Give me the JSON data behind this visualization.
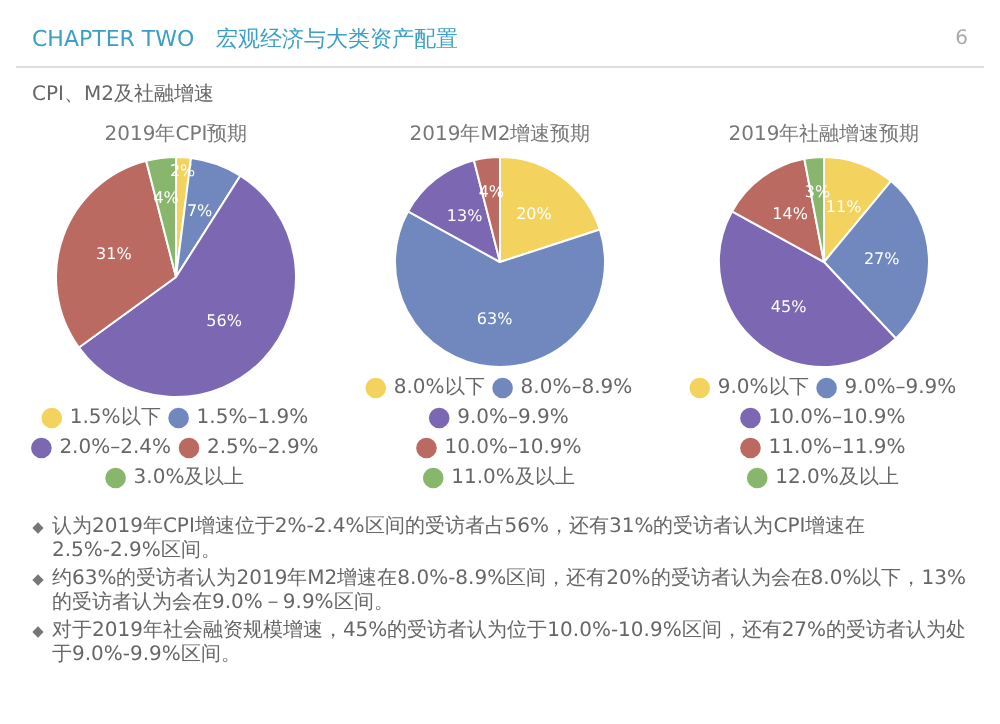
{
  "chart_data": [
    {
      "type": "other",
      "title": "CHAPTER TWO　宏观经济与大类资产配置",
      "subtitle": "CPI、M2及社融增速",
      "annotations": [
        "6"
      ]
    },
    {
      "type": "pie",
      "title": "2019年CPI预期",
      "categories": [
        "1.5%以下",
        "1.5%–1.9%",
        "2.0%–2.4%",
        "2.5%–2.9%",
        "3.0%及以上"
      ],
      "values": [
        2,
        7,
        56,
        31,
        4
      ],
      "value_labels": [
        "2%",
        "7%",
        "56%",
        "31%",
        "4%"
      ],
      "colors": [
        "#f3d35e",
        "#7088be",
        "#7c68b2",
        "#bb6a62",
        "#88b66c"
      ],
      "legend": "bottom"
    },
    {
      "type": "pie",
      "title": "2019年M2增速预期",
      "categories": [
        "8.0%以下",
        "8.0%–8.9%",
        "9.0%–9.9%",
        "10.0%–10.9%",
        "11.0%及以上"
      ],
      "values": [
        20,
        63,
        13,
        4,
        0
      ],
      "value_labels": [
        "20%",
        "63%",
        "13%",
        "4%",
        null
      ],
      "colors": [
        "#f3d35e",
        "#7088be",
        "#7c68b2",
        "#bb6a62",
        "#88b66c"
      ],
      "legend": "bottom"
    },
    {
      "type": "pie",
      "title": "2019年社融增速预期",
      "categories": [
        "9.0%以下",
        "9.0%–9.9%",
        "10.0%–10.9%",
        "11.0%–11.9%",
        "12.0%及以上"
      ],
      "values": [
        11,
        27,
        45,
        14,
        3
      ],
      "value_labels": [
        "11%",
        "27%",
        "45%",
        "14%",
        "3%"
      ],
      "colors": [
        "#f3d35e",
        "#7088be",
        "#7c68b2",
        "#bb6a62",
        "#88b66c"
      ],
      "legend": "bottom"
    },
    {
      "type": "other",
      "annotations": [
        "认为2019年CPI增速位于2%-2.4%区间的受访者占56%，还有31%的受访者认为CPI增速在2.5%-2.9%区间。",
        "约63%的受访者认为2019年M2增速在8.0%-8.9%区间，还有20%的受访者认为会在8.0%以下，13%的受访者认为会在9.0%－9.9%区间。",
        "对于2019年社会融资规模增速，45%的受访者认为位于10.0%-10.9%区间，还有27%的受访者认为处于9.0%-9.9%区间。"
      ]
    }
  ]
}
